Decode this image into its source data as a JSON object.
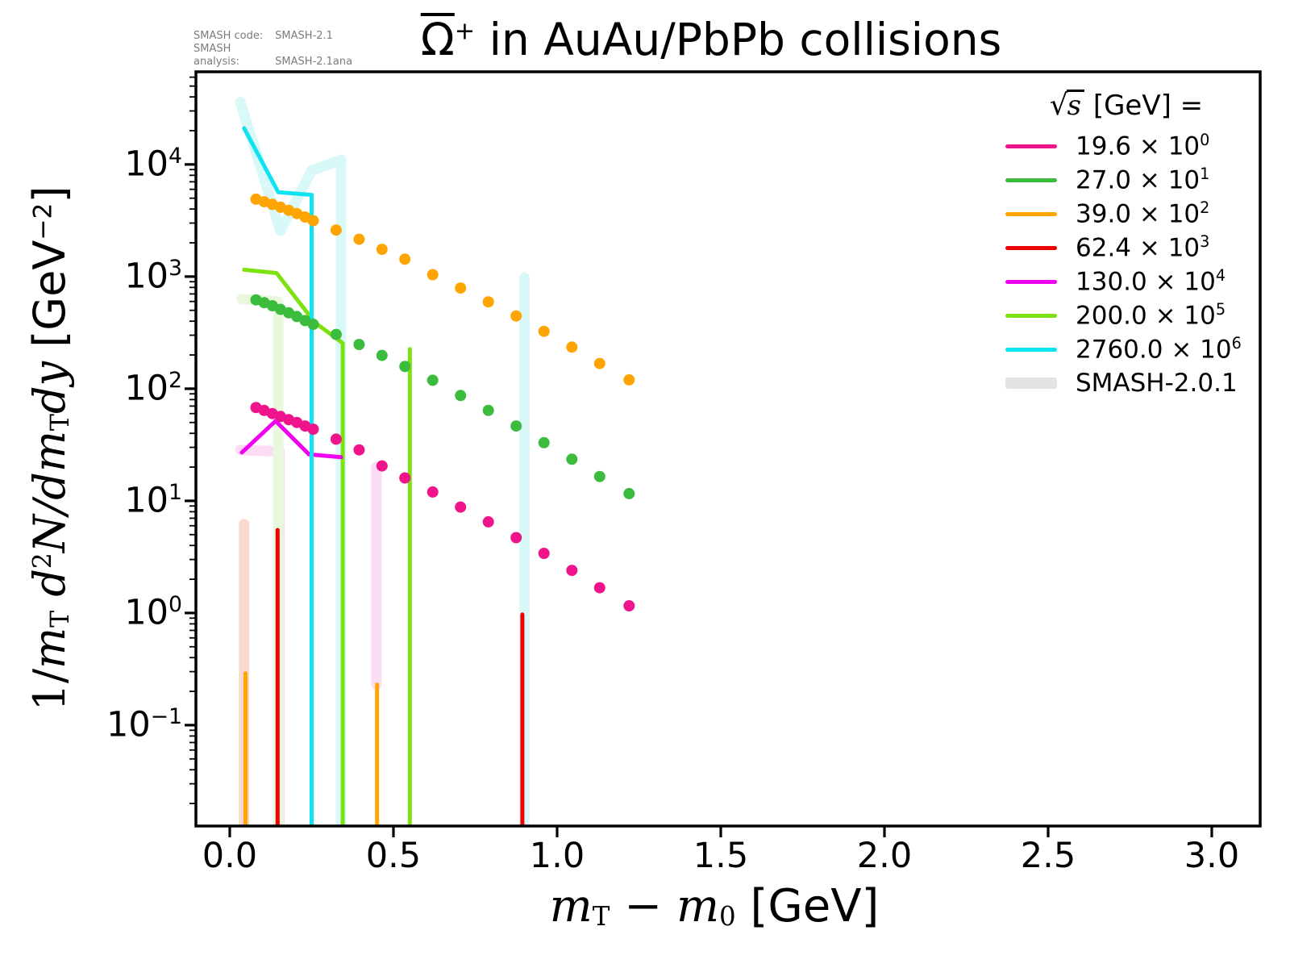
{
  "meta": {
    "rows": [
      {
        "label": "SMASH code:",
        "value": "SMASH-2.1"
      },
      {
        "label": "SMASH analysis:",
        "value": "SMASH-2.1ana"
      }
    ]
  },
  "title": {
    "particle": "Ω",
    "charge": "+",
    "rest": " in AuAu/PbPb collisions"
  },
  "legend": {
    "title_radical": "√",
    "title_radicand": "s",
    "title_rest": " [GeV] =",
    "times": " × 10",
    "items": [
      {
        "value": "19.6",
        "exp": "0",
        "color": "#F0148C",
        "thick": false
      },
      {
        "value": "27.0",
        "exp": "1",
        "color": "#3CBC3C",
        "thick": false
      },
      {
        "value": "39.0",
        "exp": "2",
        "color": "#FFA503",
        "thick": false
      },
      {
        "value": "62.4",
        "exp": "3",
        "color": "#EE0000",
        "thick": false
      },
      {
        "value": "130.0",
        "exp": "4",
        "color": "#F000F0",
        "thick": false
      },
      {
        "value": "200.0",
        "exp": "5",
        "color": "#7DE112",
        "thick": false
      },
      {
        "value": "2760.0",
        "exp": "6",
        "color": "#0DE3F1",
        "thick": false
      },
      {
        "value": "SMASH-2.0.1",
        "exp": null,
        "color": "#E3E3E3",
        "thick": true
      }
    ]
  },
  "axes": {
    "xlabel_parts": [
      {
        "text": "m",
        "style": "mvar"
      },
      {
        "text": "T",
        "style": "msub"
      },
      {
        "text": " − ",
        "style": "mrm"
      },
      {
        "text": "m",
        "style": "mvar"
      },
      {
        "text": "0",
        "style": "msub"
      },
      {
        "text": " [GeV]",
        "style": "munit"
      }
    ],
    "ylabel_parts": [
      {
        "text": "1/",
        "style": "mrm"
      },
      {
        "text": "m",
        "style": "mvar"
      },
      {
        "text": "T",
        "style": "msub"
      },
      {
        "text": " d",
        "style": "mvar"
      },
      {
        "text": "2",
        "style": "msup"
      },
      {
        "text": "N",
        "style": "mvar"
      },
      {
        "text": "/d",
        "style": "mvar"
      },
      {
        "text": "m",
        "style": "mvar"
      },
      {
        "text": "T",
        "style": "msub"
      },
      {
        "text": "dy",
        "style": "mvar"
      },
      {
        "text": "  [GeV",
        "style": "munit"
      },
      {
        "text": "−2",
        "style": "musup"
      },
      {
        "text": "]",
        "style": "munit"
      }
    ],
    "x_ticks": [
      0.0,
      0.5,
      1.0,
      1.5,
      2.0,
      2.5,
      3.0
    ],
    "y_tick_exponents": [
      -1,
      0,
      1,
      2,
      3,
      4
    ]
  },
  "chart_data": {
    "type": "line",
    "title": "Ω̄⁺ in AuAu/PbPb collisions",
    "xlabel": "mT − m0 [GeV]",
    "ylabel": "1/mT d²N/dmTdy [GeV⁻²]",
    "x_scale": "linear",
    "y_scale": "log",
    "xlim": [
      -0.1034,
      3.1478
    ],
    "ylim": [
      0.0126,
      67000
    ],
    "grid": false,
    "legend_position": "upper right",
    "legend_title": "√s [GeV] =",
    "series": [
      {
        "id": "smash201-62p4",
        "label": "SMASH-2.0.1 62.4 GeV",
        "role": "band",
        "color": "#FAD9D0",
        "width": 13,
        "segments": [
          [
            [
              0.044,
              6.2
            ],
            [
              0.044,
              0.013
            ]
          ]
        ]
      },
      {
        "id": "smash201-130",
        "label": "SMASH-2.0.1 130.0 GeV",
        "role": "band",
        "color": "#FBDCF4",
        "width": 13,
        "segments": [
          [
            [
              0.032,
              28.5
            ],
            [
              0.152,
              27.5
            ],
            [
              0.152,
              0.013
            ]
          ],
          [
            [
              0.448,
              20
            ],
            [
              0.448,
              0.23
            ]
          ]
        ]
      },
      {
        "id": "smash201-200",
        "label": "SMASH-2.0.1 200.0 GeV",
        "role": "band",
        "color": "#E9F8DC",
        "width": 13,
        "segments": [
          [
            [
              0.037,
              630
            ],
            [
              0.148,
              600
            ],
            [
              0.148,
              0.013
            ]
          ]
        ]
      },
      {
        "id": "smash201-2760",
        "label": "SMASH-2.0.1 2760.0 GeV",
        "role": "band",
        "color": "#D9F8F8",
        "width": 13,
        "segments": [
          [
            [
              0.032,
              36000
            ],
            [
              0.155,
              2550
            ],
            [
              0.25,
              8800
            ],
            [
              0.34,
              11000
            ],
            [
              0.34,
              0.013
            ]
          ],
          [
            [
              0.9,
              980
            ],
            [
              0.9,
              0.013
            ]
          ]
        ]
      },
      {
        "id": "62p4",
        "label": "62.4 × 10³",
        "role": "line",
        "color": "#EE0000",
        "width": 5,
        "segments": [
          [
            [
              0.146,
              5.5
            ],
            [
              0.146,
              0.013
            ]
          ],
          [
            [
              0.894,
              0.97
            ],
            [
              0.894,
              0.013
            ]
          ]
        ]
      },
      {
        "id": "39-spikes",
        "label": "39.0 × 10² spikes",
        "role": "line",
        "color": "#FFA503",
        "width": 5,
        "segments": [
          [
            [
              0.048,
              0.29
            ],
            [
              0.048,
              0.013
            ]
          ],
          [
            [
              0.45,
              0.23
            ],
            [
              0.45,
              0.013
            ]
          ]
        ]
      },
      {
        "id": "200",
        "label": "200.0 × 10⁵",
        "role": "line",
        "color": "#7DE112",
        "width": 5,
        "segments": [
          [
            [
              0.044,
              1150
            ],
            [
              0.143,
              1075
            ],
            [
              0.26,
              390
            ],
            [
              0.345,
              255
            ],
            [
              0.345,
              0.013
            ]
          ],
          [
            [
              0.55,
              225
            ],
            [
              0.55,
              0.013
            ]
          ]
        ]
      },
      {
        "id": "130",
        "label": "130.0 × 10⁴",
        "role": "line",
        "color": "#F000F0",
        "width": 5,
        "segments": [
          [
            [
              0.037,
              27
            ],
            [
              0.14,
              51.5
            ],
            [
              0.242,
              26
            ],
            [
              0.34,
              24.5
            ]
          ]
        ]
      },
      {
        "id": "2760",
        "label": "2760.0 × 10⁶",
        "role": "line",
        "color": "#0DE3F1",
        "width": 5,
        "segments": [
          [
            [
              0.044,
              21000
            ],
            [
              0.148,
              5650
            ],
            [
              0.25,
              5350
            ],
            [
              0.25,
              0.013
            ]
          ]
        ]
      },
      {
        "id": "19p6",
        "label": "19.6 × 10⁰",
        "role": "dots",
        "color": "#F0148C",
        "r": 7,
        "x": [
          0.08,
          0.105,
          0.13,
          0.155,
          0.18,
          0.205,
          0.23,
          0.255,
          0.325,
          0.395,
          0.465,
          0.535,
          0.62,
          0.705,
          0.79,
          0.875,
          0.96,
          1.045,
          1.13,
          1.22
        ],
        "y": [
          68,
          64,
          60,
          56.5,
          53,
          50,
          46.5,
          43.5,
          35.5,
          28.5,
          20.5,
          16,
          12,
          8.8,
          6.5,
          4.7,
          3.4,
          2.4,
          1.68,
          1.16
        ]
      },
      {
        "id": "27",
        "label": "27.0 × 10¹",
        "role": "dots",
        "color": "#3CBC3C",
        "r": 7,
        "x": [
          0.08,
          0.105,
          0.13,
          0.155,
          0.18,
          0.205,
          0.23,
          0.255,
          0.325,
          0.395,
          0.465,
          0.535,
          0.62,
          0.705,
          0.79,
          0.875,
          0.96,
          1.045,
          1.13,
          1.22
        ],
        "y": [
          620,
          585,
          550,
          510,
          475,
          440,
          405,
          375,
          305,
          248,
          198,
          158,
          119,
          87,
          64,
          46.5,
          33,
          23.5,
          16.5,
          11.6
        ]
      },
      {
        "id": "39",
        "label": "39.0 × 10²",
        "role": "dots",
        "color": "#FFA503",
        "r": 7,
        "x": [
          0.08,
          0.105,
          0.13,
          0.155,
          0.18,
          0.205,
          0.23,
          0.255,
          0.325,
          0.395,
          0.465,
          0.535,
          0.62,
          0.705,
          0.79,
          0.875,
          0.96,
          1.045,
          1.13,
          1.22
        ],
        "y": [
          4900,
          4650,
          4400,
          4150,
          3900,
          3650,
          3400,
          3150,
          2600,
          2150,
          1750,
          1430,
          1040,
          790,
          595,
          445,
          325,
          235,
          168,
          120
        ]
      }
    ]
  }
}
